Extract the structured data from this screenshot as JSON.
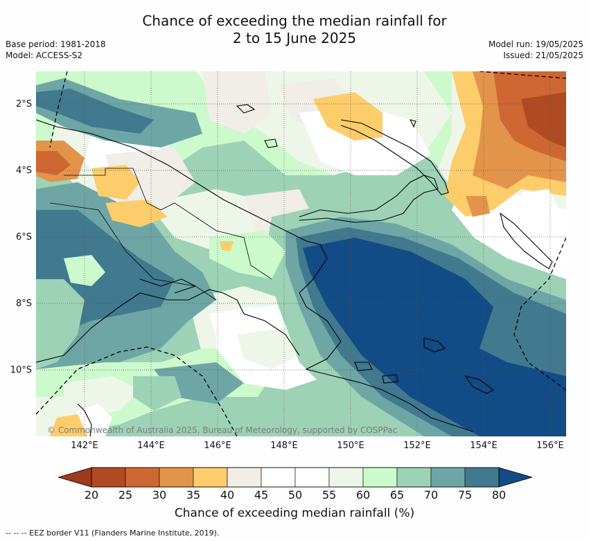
{
  "title": {
    "line1": "Chance of exceeding the median rainfall for",
    "line2": "2 to 15 June 2025"
  },
  "meta_left": {
    "base_period": "Base period: 1981-2018",
    "model": "Model: ACCESS-S2"
  },
  "meta_right": {
    "model_run": "Model run: 19/05/2025",
    "issued": "Issued: 21/05/2025"
  },
  "map": {
    "lon_labels": [
      "142°E",
      "144°E",
      "146°E",
      "148°E",
      "150°E",
      "152°E",
      "154°E",
      "156°E"
    ],
    "lat_labels": [
      "2°S",
      "4°S",
      "6°S",
      "8°S",
      "10°S"
    ],
    "copyright": "© Commonwealth of Australia 2025, Bureau of Meteorology, supported by COSPPac"
  },
  "colorbar": {
    "ticks": [
      "20",
      "25",
      "30",
      "35",
      "40",
      "45",
      "50",
      "55",
      "60",
      "65",
      "70",
      "75",
      "80"
    ],
    "colors": [
      "#b04a22",
      "#cf6733",
      "#e3944b",
      "#fdcd6b",
      "#f1ede7",
      "#ffffff",
      "#ffffff",
      "#eef6ea",
      "#ccfacc",
      "#9dd2b6",
      "#6ea6a6",
      "#41798f"
    ],
    "under_color": "#9c3b1d",
    "over_color": "#124b85",
    "label": "Chance of exceeding median rainfall (%)"
  },
  "footnote": "--  --  -- EEZ border V11 (Flanders Marine Institute, 2019)."
}
